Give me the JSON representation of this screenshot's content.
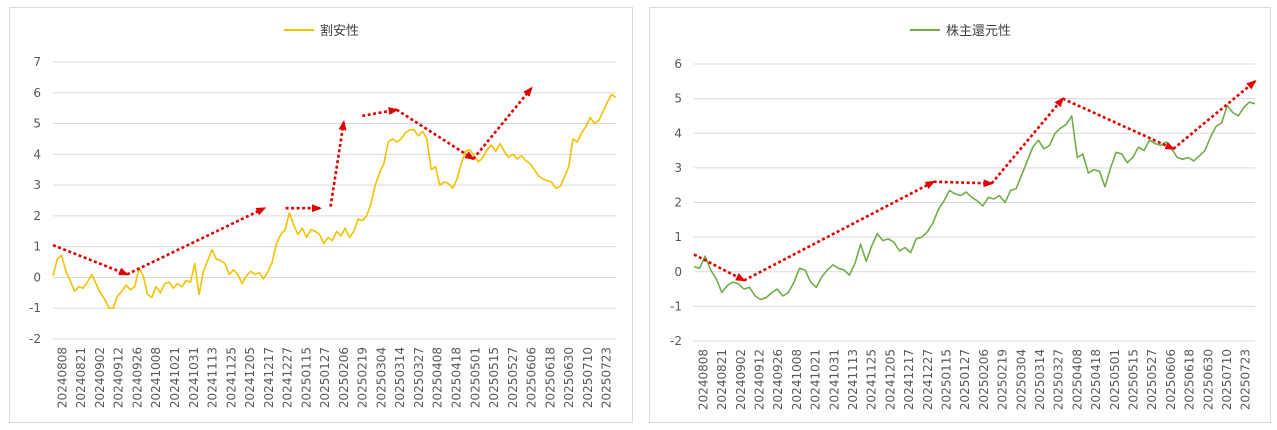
{
  "chart_data": [
    {
      "type": "line",
      "series": [
        {
          "name": "割安性",
          "color": "#F2C200",
          "values": [
            0.05,
            0.6,
            0.72,
            0.2,
            -0.1,
            -0.45,
            -0.3,
            -0.35,
            -0.15,
            0.1,
            -0.2,
            -0.5,
            -0.7,
            -1.0,
            -1.0,
            -0.6,
            -0.45,
            -0.25,
            -0.4,
            -0.3,
            0.3,
            0.05,
            -0.55,
            -0.65,
            -0.3,
            -0.5,
            -0.2,
            -0.15,
            -0.35,
            -0.2,
            -0.3,
            -0.1,
            -0.15,
            0.45,
            -0.55,
            0.2,
            0.55,
            0.9,
            0.6,
            0.55,
            0.45,
            0.1,
            0.25,
            0.1,
            -0.2,
            0.05,
            0.2,
            0.1,
            0.15,
            -0.05,
            0.2,
            0.5,
            1.1,
            1.4,
            1.55,
            2.1,
            1.7,
            1.4,
            1.6,
            1.3,
            1.55,
            1.5,
            1.4,
            1.1,
            1.3,
            1.2,
            1.5,
            1.35,
            1.6,
            1.3,
            1.5,
            1.9,
            1.85,
            2.0,
            2.4,
            3.0,
            3.4,
            3.7,
            4.4,
            4.5,
            4.4,
            4.5,
            4.7,
            4.8,
            4.8,
            4.6,
            4.75,
            4.5,
            3.5,
            3.6,
            3.0,
            3.1,
            3.05,
            2.9,
            3.2,
            3.7,
            4.1,
            4.15,
            3.95,
            3.75,
            3.9,
            4.15,
            4.3,
            4.1,
            4.35,
            4.1,
            3.9,
            4.0,
            3.85,
            3.95,
            3.8,
            3.7,
            3.5,
            3.3,
            3.2,
            3.15,
            3.1,
            2.9,
            2.95,
            3.25,
            3.6,
            4.5,
            4.4,
            4.7,
            4.9,
            5.2,
            5.0,
            5.1,
            5.4,
            5.7,
            5.95,
            5.85
          ]
        }
      ],
      "x_labels": [
        "20240808",
        "20240821",
        "20240902",
        "20240912",
        "20240926",
        "20241008",
        "20241021",
        "20241031",
        "20241113",
        "20241125",
        "20241205",
        "20241217",
        "20241227",
        "20250115",
        "20250127",
        "20250206",
        "20250219",
        "20250304",
        "20250314",
        "20250327",
        "20250408",
        "20250418",
        "20250501",
        "20250515",
        "20250527",
        "20250606",
        "20250618",
        "20250630",
        "20250710",
        "20250723"
      ],
      "ylim": [
        -2,
        7
      ],
      "y_ticks": [
        "7",
        "6",
        "5",
        "4",
        "3",
        "2",
        "1",
        "0",
        "-1",
        "-2"
      ],
      "grid": true,
      "legend_position": "top",
      "trend_arrows": {
        "color": "#E00000",
        "points": [
          [
            0,
            1.05
          ],
          [
            28,
            0.1
          ],
          [
            80,
            2.25
          ],
          [
            88,
            2.25
          ],
          [
            101,
            2.25
          ],
          [
            105,
            2.3
          ],
          [
            110,
            5.05
          ],
          [
            117,
            5.25
          ],
          [
            130,
            5.45
          ],
          [
            159,
            3.85
          ],
          [
            181,
            6.15
          ]
        ],
        "arrows": [
          [
            0,
            1
          ],
          [
            1,
            2
          ],
          [
            3,
            4
          ],
          [
            5,
            6
          ],
          [
            7,
            8
          ],
          [
            8,
            9
          ],
          [
            9,
            10
          ]
        ]
      }
    },
    {
      "type": "line",
      "series": [
        {
          "name": "株主還元性",
          "color": "#70AD47",
          "values": [
            0.15,
            0.1,
            0.45,
            0.05,
            -0.2,
            -0.6,
            -0.4,
            -0.3,
            -0.35,
            -0.5,
            -0.45,
            -0.7,
            -0.8,
            -0.75,
            -0.6,
            -0.5,
            -0.7,
            -0.6,
            -0.3,
            0.1,
            0.05,
            -0.3,
            -0.45,
            -0.15,
            0.05,
            0.2,
            0.1,
            0.05,
            -0.1,
            0.25,
            0.8,
            0.3,
            0.75,
            1.1,
            0.9,
            0.95,
            0.85,
            0.6,
            0.7,
            0.55,
            0.95,
            1.0,
            1.15,
            1.4,
            1.8,
            2.05,
            2.35,
            2.25,
            2.2,
            2.3,
            2.15,
            2.05,
            1.9,
            2.15,
            2.1,
            2.2,
            2.0,
            2.35,
            2.4,
            2.8,
            3.2,
            3.6,
            3.8,
            3.55,
            3.65,
            4.0,
            4.15,
            4.25,
            4.5,
            3.3,
            3.4,
            2.85,
            2.95,
            2.9,
            2.45,
            3.0,
            3.45,
            3.4,
            3.15,
            3.3,
            3.6,
            3.5,
            3.8,
            3.7,
            3.65,
            3.75,
            3.55,
            3.3,
            3.25,
            3.3,
            3.2,
            3.35,
            3.5,
            3.9,
            4.2,
            4.3,
            4.8,
            4.6,
            4.5,
            4.75,
            4.9,
            4.85
          ]
        }
      ],
      "x_labels": [
        "20240808",
        "20240821",
        "20240902",
        "20240912",
        "20240926",
        "20241008",
        "20241021",
        "20241031",
        "20241113",
        "20241125",
        "20241205",
        "20241217",
        "20241227",
        "20250115",
        "20250127",
        "20250206",
        "20250219",
        "20250304",
        "20250314",
        "20250327",
        "20250408",
        "20250418",
        "20250501",
        "20250515",
        "20250527",
        "20250606",
        "20250618",
        "20250630",
        "20250710",
        "20250723"
      ],
      "ylim": [
        -2,
        6
      ],
      "y_ticks": [
        "6",
        "5",
        "4",
        "3",
        "2",
        "1",
        "0",
        "-1",
        "-2"
      ],
      "grid": true,
      "legend_position": "top",
      "trend_arrows": {
        "color": "#E00000",
        "points": [
          [
            0,
            0.5
          ],
          [
            19,
            -0.25
          ],
          [
            91,
            2.6
          ],
          [
            113,
            2.55
          ],
          [
            140,
            5.0
          ],
          [
            182,
            3.55
          ],
          [
            213,
            5.5
          ]
        ],
        "arrows": [
          [
            0,
            1
          ],
          [
            1,
            2
          ],
          [
            2,
            3
          ],
          [
            3,
            4
          ],
          [
            4,
            5
          ],
          [
            5,
            6
          ]
        ]
      }
    }
  ]
}
